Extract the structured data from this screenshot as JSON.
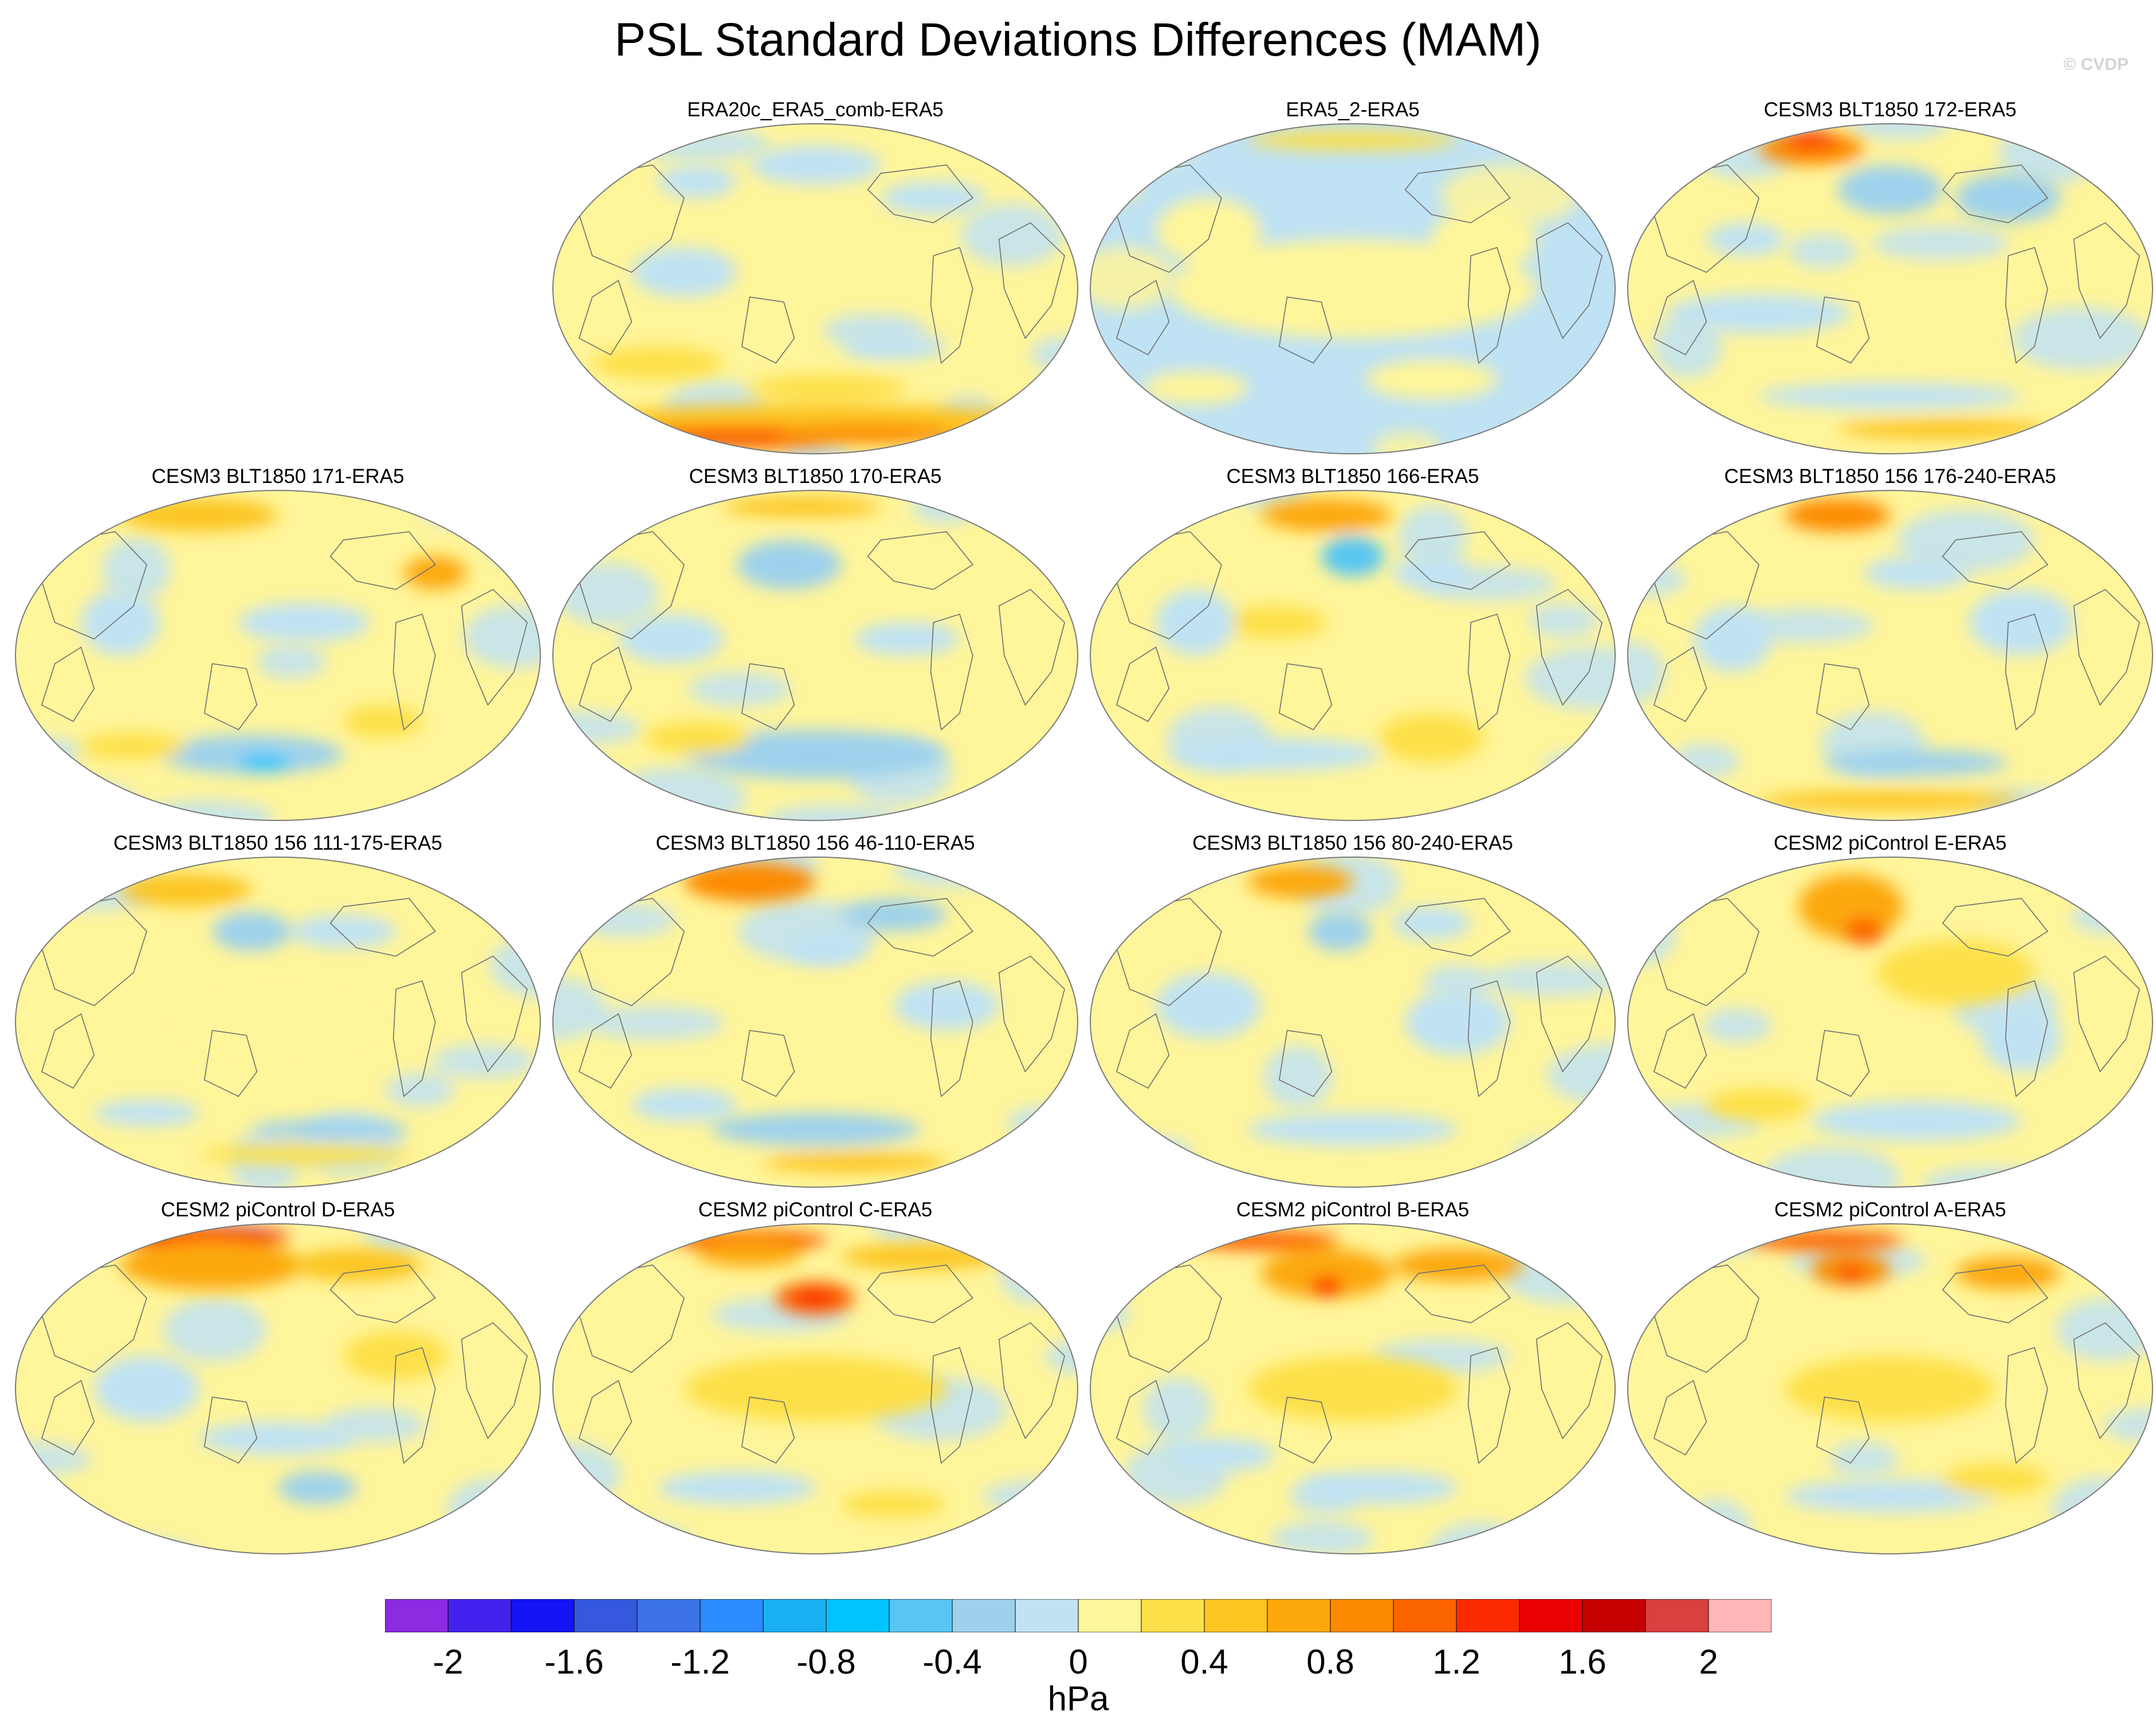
{
  "title": "PSL Standard Deviations Differences (MAM)",
  "credit": "© CVDP",
  "units": "hPa",
  "colors": {
    "land_outline": "#6f6f6f",
    "border": "#7a7a7a",
    "base_pos": "#fff59a",
    "base_neg": "#bfe2f4"
  },
  "colorbar": {
    "colors": [
      "#8b2be2",
      "#4322ee",
      "#1414f5",
      "#3658de",
      "#3b72e6",
      "#2a8cff",
      "#1aaff0",
      "#00c4ff",
      "#58c6f2",
      "#9fd1ec",
      "#c0e2f3",
      "#fff59a",
      "#fde04a",
      "#fcc520",
      "#fca80c",
      "#fc8a00",
      "#fc6400",
      "#fc2b00",
      "#ea0000",
      "#c40000",
      "#d94040",
      "#ffb6b6"
    ],
    "labels": [
      "-2",
      "-1.6",
      "-1.2",
      "-0.8",
      "-0.4",
      "0",
      "0.4",
      "0.8",
      "1.2",
      "1.6",
      "2"
    ]
  },
  "panels": [
    {
      "title": "ERA20c_ERA5_comb-ERA5",
      "row": 0,
      "col": 1,
      "base": "pos",
      "blobs": [
        [
          0.0,
          -0.82,
          0.95,
          0.12,
          2
        ],
        [
          -0.3,
          -0.9,
          0.45,
          0.07,
          5
        ],
        [
          0.2,
          -0.88,
          0.35,
          0.06,
          4
        ],
        [
          0.05,
          -0.6,
          0.3,
          0.08,
          1
        ],
        [
          -0.6,
          -0.45,
          0.25,
          0.1,
          1
        ],
        [
          0.3,
          -0.35,
          0.2,
          0.08,
          -1
        ],
        [
          0.0,
          0.75,
          0.25,
          0.12,
          -1
        ],
        [
          -0.45,
          0.65,
          0.15,
          0.1,
          -1
        ],
        [
          0.45,
          0.55,
          0.2,
          0.1,
          -1
        ],
        [
          -0.5,
          0.1,
          0.2,
          0.15,
          -1
        ]
      ]
    },
    {
      "title": "ERA5_2-ERA5",
      "row": 0,
      "col": 2,
      "base": "neg",
      "blobs": [
        [
          0.0,
          0.0,
          0.7,
          0.3,
          0
        ],
        [
          -0.55,
          0.35,
          0.2,
          0.2,
          0
        ],
        [
          0.5,
          0.3,
          0.2,
          0.2,
          0
        ],
        [
          0.3,
          -0.55,
          0.25,
          0.12,
          0
        ],
        [
          -0.6,
          -0.6,
          0.2,
          0.1,
          0
        ],
        [
          0.0,
          0.9,
          0.4,
          0.06,
          1
        ]
      ]
    },
    {
      "title": "CESM3 BLT1850 172-ERA5",
      "row": 0,
      "col": 3,
      "base": "pos",
      "blobs": [
        [
          -0.3,
          0.85,
          0.2,
          0.1,
          4
        ],
        [
          -0.3,
          0.9,
          0.1,
          0.05,
          6
        ],
        [
          0.0,
          0.6,
          0.2,
          0.15,
          -2
        ],
        [
          0.45,
          0.55,
          0.2,
          0.15,
          -2
        ],
        [
          -0.5,
          -0.15,
          0.35,
          0.12,
          -1
        ],
        [
          0.0,
          -0.65,
          0.5,
          0.08,
          -1
        ],
        [
          0.2,
          -0.85,
          0.4,
          0.06,
          2
        ],
        [
          -0.55,
          0.3,
          0.15,
          0.1,
          -1
        ]
      ]
    },
    {
      "title": "CESM3 BLT1850 171-ERA5",
      "row": 1,
      "col": 0,
      "base": "pos",
      "blobs": [
        [
          -0.3,
          0.85,
          0.3,
          0.1,
          2
        ],
        [
          0.6,
          0.5,
          0.12,
          0.1,
          3
        ],
        [
          -0.1,
          -0.6,
          0.35,
          0.12,
          -2
        ],
        [
          -0.05,
          -0.65,
          0.1,
          0.05,
          -4
        ],
        [
          -0.55,
          -0.55,
          0.2,
          0.08,
          1
        ],
        [
          0.1,
          0.2,
          0.25,
          0.12,
          -1
        ],
        [
          -0.6,
          0.2,
          0.15,
          0.2,
          -1
        ],
        [
          0.4,
          -0.4,
          0.15,
          0.1,
          1
        ]
      ]
    },
    {
      "title": "CESM3 BLT1850 170-ERA5",
      "row": 1,
      "col": 1,
      "base": "pos",
      "blobs": [
        [
          -0.05,
          0.9,
          0.3,
          0.06,
          2
        ],
        [
          -0.1,
          0.55,
          0.2,
          0.15,
          -2
        ],
        [
          0.0,
          -0.6,
          0.5,
          0.15,
          -2
        ],
        [
          -0.55,
          0.1,
          0.2,
          0.15,
          -1
        ],
        [
          0.35,
          0.1,
          0.2,
          0.1,
          -1
        ],
        [
          -0.45,
          -0.5,
          0.2,
          0.1,
          1
        ]
      ]
    },
    {
      "title": "CESM3 BLT1850 166-ERA5",
      "row": 1,
      "col": 2,
      "base": "pos",
      "blobs": [
        [
          -0.1,
          0.85,
          0.25,
          0.1,
          3
        ],
        [
          0.0,
          0.6,
          0.12,
          0.12,
          -3
        ],
        [
          0.3,
          0.5,
          0.15,
          0.1,
          -1
        ],
        [
          -0.3,
          0.2,
          0.2,
          0.1,
          1
        ],
        [
          -0.3,
          -0.6,
          0.4,
          0.1,
          -1
        ],
        [
          0.3,
          -0.5,
          0.2,
          0.15,
          1
        ],
        [
          -0.6,
          0.2,
          0.15,
          0.2,
          -1
        ]
      ]
    },
    {
      "title": "CESM3 BLT1850 156 176-240-ERA5",
      "row": 1,
      "col": 3,
      "base": "pos",
      "blobs": [
        [
          -0.2,
          0.85,
          0.2,
          0.1,
          4
        ],
        [
          0.1,
          0.5,
          0.2,
          0.1,
          -1
        ],
        [
          0.1,
          -0.65,
          0.35,
          0.08,
          -2
        ],
        [
          0.0,
          -0.88,
          0.5,
          0.06,
          2
        ],
        [
          -0.6,
          0.1,
          0.15,
          0.2,
          -1
        ],
        [
          0.5,
          0.2,
          0.2,
          0.2,
          -1
        ]
      ]
    },
    {
      "title": "CESM3 BLT1850 156 111-175-ERA5",
      "row": 2,
      "col": 0,
      "base": "pos",
      "blobs": [
        [
          -0.35,
          0.8,
          0.25,
          0.1,
          2
        ],
        [
          -0.1,
          0.55,
          0.15,
          0.12,
          -2
        ],
        [
          0.25,
          0.55,
          0.2,
          0.1,
          -1
        ],
        [
          0.1,
          -0.8,
          0.4,
          0.06,
          1
        ],
        [
          0.2,
          -0.65,
          0.3,
          0.06,
          -2
        ],
        [
          -0.5,
          -0.55,
          0.2,
          0.08,
          -1
        ],
        [
          0.0,
          0.0,
          0.4,
          0.2,
          0
        ]
      ]
    },
    {
      "title": "CESM3 BLT1850 156 46-110-ERA5",
      "row": 2,
      "col": 1,
      "base": "pos",
      "blobs": [
        [
          -0.25,
          0.85,
          0.25,
          0.12,
          4
        ],
        [
          0.3,
          0.65,
          0.2,
          0.1,
          -2
        ],
        [
          0.05,
          0.45,
          0.15,
          0.1,
          -1
        ],
        [
          0.0,
          -0.65,
          0.4,
          0.1,
          -2
        ],
        [
          0.15,
          -0.85,
          0.35,
          0.06,
          2
        ],
        [
          -0.5,
          -0.5,
          0.2,
          0.1,
          -1
        ],
        [
          0.5,
          0.1,
          0.2,
          0.15,
          -1
        ]
      ]
    },
    {
      "title": "CESM3 BLT1850 156 80-240-ERA5",
      "row": 2,
      "col": 2,
      "base": "pos",
      "blobs": [
        [
          -0.2,
          0.85,
          0.2,
          0.1,
          3
        ],
        [
          -0.05,
          0.55,
          0.12,
          0.12,
          -2
        ],
        [
          0.3,
          0.6,
          0.15,
          0.1,
          -1
        ],
        [
          0.0,
          -0.65,
          0.4,
          0.1,
          -1
        ],
        [
          -0.55,
          0.1,
          0.2,
          0.2,
          -1
        ],
        [
          0.4,
          0.0,
          0.2,
          0.2,
          -1
        ]
      ]
    },
    {
      "title": "CESM2 piControl E-ERA5",
      "row": 2,
      "col": 3,
      "base": "pos",
      "blobs": [
        [
          -0.15,
          0.7,
          0.2,
          0.2,
          3
        ],
        [
          -0.1,
          0.55,
          0.08,
          0.08,
          5
        ],
        [
          0.25,
          0.3,
          0.3,
          0.2,
          1
        ],
        [
          0.1,
          -0.6,
          0.4,
          0.12,
          -1
        ],
        [
          -0.5,
          -0.5,
          0.2,
          0.1,
          1
        ],
        [
          0.5,
          -0.1,
          0.15,
          0.2,
          -1
        ]
      ]
    },
    {
      "title": "CESM2 piControl D-ERA5",
      "row": 3,
      "col": 0,
      "base": "pos",
      "blobs": [
        [
          -0.3,
          0.92,
          0.35,
          0.06,
          6
        ],
        [
          -0.25,
          0.75,
          0.35,
          0.15,
          3
        ],
        [
          0.3,
          0.75,
          0.25,
          0.1,
          2
        ],
        [
          0.15,
          -0.6,
          0.15,
          0.1,
          -2
        ],
        [
          -0.5,
          0.0,
          0.2,
          0.2,
          -1
        ],
        [
          0.0,
          -0.3,
          0.3,
          0.1,
          -1
        ],
        [
          0.45,
          0.2,
          0.2,
          0.15,
          1
        ]
      ]
    },
    {
      "title": "CESM2 piControl C-ERA5",
      "row": 3,
      "col": 1,
      "base": "pos",
      "blobs": [
        [
          -0.25,
          0.9,
          0.3,
          0.06,
          5
        ],
        [
          -0.25,
          0.82,
          0.2,
          0.08,
          3
        ],
        [
          0.0,
          0.55,
          0.15,
          0.1,
          5
        ],
        [
          0.0,
          0.55,
          0.08,
          0.05,
          6
        ],
        [
          0.4,
          0.8,
          0.3,
          0.08,
          2
        ],
        [
          0.0,
          0.0,
          0.5,
          0.2,
          1
        ],
        [
          -0.3,
          -0.6,
          0.3,
          0.1,
          -1
        ],
        [
          0.3,
          -0.7,
          0.2,
          0.08,
          1
        ]
      ]
    },
    {
      "title": "CESM2 piControl B-ERA5",
      "row": 3,
      "col": 2,
      "base": "pos",
      "blobs": [
        [
          -0.35,
          0.9,
          0.3,
          0.06,
          5
        ],
        [
          -0.1,
          0.7,
          0.25,
          0.15,
          3
        ],
        [
          -0.1,
          0.62,
          0.06,
          0.06,
          6
        ],
        [
          0.4,
          0.75,
          0.25,
          0.1,
          3
        ],
        [
          0.0,
          0.0,
          0.4,
          0.2,
          1
        ],
        [
          0.1,
          -0.6,
          0.3,
          0.1,
          -1
        ],
        [
          -0.5,
          -0.4,
          0.2,
          0.1,
          -1
        ]
      ]
    },
    {
      "title": "CESM2 piControl A-ERA5",
      "row": 3,
      "col": 3,
      "base": "pos",
      "blobs": [
        [
          -0.25,
          0.9,
          0.3,
          0.06,
          5
        ],
        [
          -0.15,
          0.72,
          0.15,
          0.1,
          4
        ],
        [
          -0.15,
          0.7,
          0.05,
          0.04,
          6
        ],
        [
          0.45,
          0.7,
          0.2,
          0.1,
          3
        ],
        [
          0.0,
          0.0,
          0.4,
          0.2,
          1
        ],
        [
          0.0,
          -0.65,
          0.4,
          0.1,
          -1
        ],
        [
          0.4,
          -0.55,
          0.2,
          0.1,
          1
        ]
      ]
    }
  ]
}
